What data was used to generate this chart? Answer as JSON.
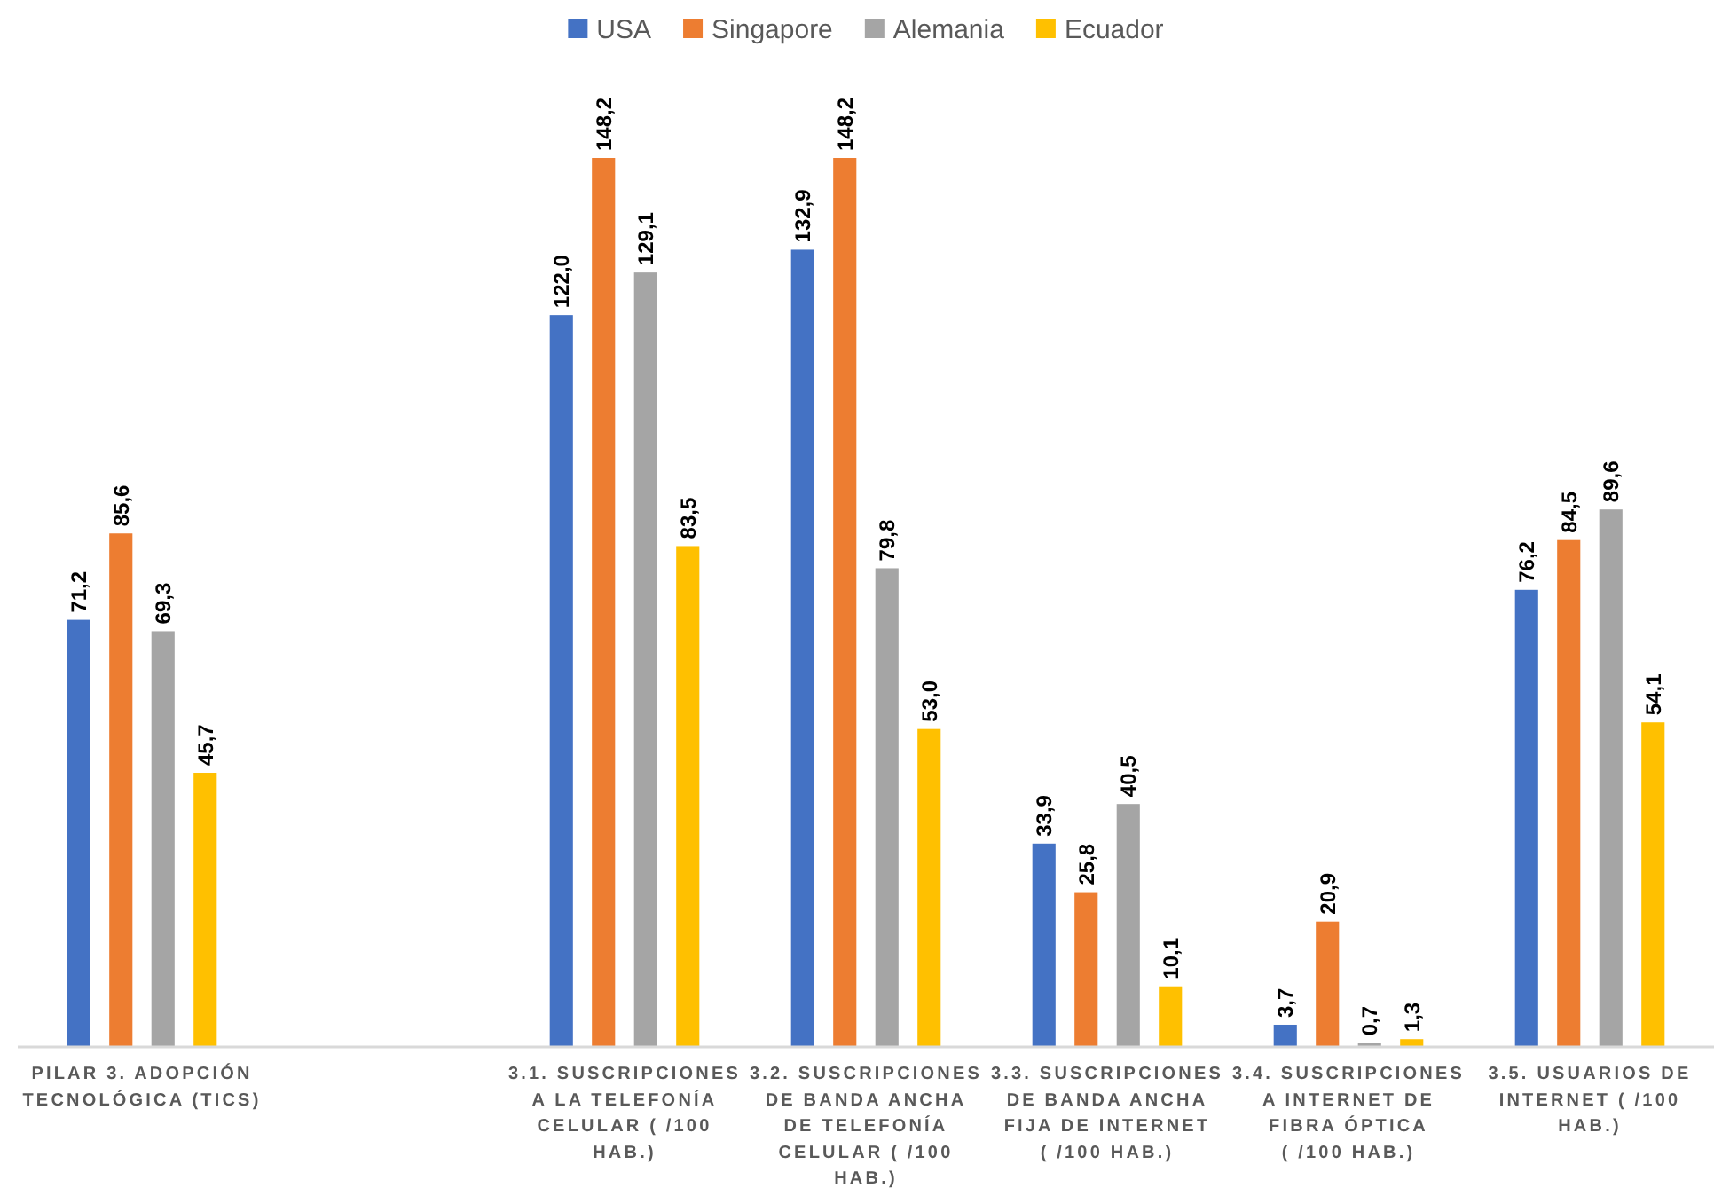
{
  "chart_data": {
    "type": "bar",
    "categories": [
      "PILAR 3. ADOPCIÓN\nTECNOLÓGICA (TICS)",
      null,
      "3.1. SUSCRIPCIONES\nA LA TELEFONÍA\nCELULAR ( /100\nHAB.)",
      "3.2. SUSCRIPCIONES\nDE BANDA ANCHA\nDE TELEFONÍA\nCELULAR ( /100\nHAB.)",
      "3.3. SUSCRIPCIONES\nDE BANDA ANCHA\nFIJA DE INTERNET\n( /100 HAB.)",
      "3.4. SUSCRIPCIONES\nA INTERNET DE\nFIBRA ÓPTICA\n( /100 HAB.)",
      "3.5. USUARIOS DE\nINTERNET ( /100\nHAB.)"
    ],
    "series": [
      {
        "name": "USA",
        "color": "#4472c4",
        "values": [
          71.2,
          null,
          122.0,
          132.9,
          33.9,
          3.7,
          76.2
        ],
        "value_labels": [
          "71,2",
          null,
          "122,0",
          "132,9",
          "33,9",
          "3,7",
          "76,2"
        ]
      },
      {
        "name": "Singapore",
        "color": "#ed7d31",
        "values": [
          85.6,
          null,
          148.2,
          148.2,
          25.8,
          20.9,
          84.5
        ],
        "value_labels": [
          "85,6",
          null,
          "148,2",
          "148,2",
          "25,8",
          "20,9",
          "84,5"
        ]
      },
      {
        "name": "Alemania",
        "color": "#a5a5a5",
        "values": [
          69.3,
          null,
          129.1,
          79.8,
          40.5,
          0.7,
          89.6
        ],
        "value_labels": [
          "69,3",
          null,
          "129,1",
          "79,8",
          "40,5",
          "0,7",
          "89,6"
        ]
      },
      {
        "name": "Ecuador",
        "color": "#ffc000",
        "values": [
          45.7,
          null,
          83.5,
          53.0,
          10.1,
          1.3,
          54.1
        ],
        "value_labels": [
          "45,7",
          null,
          "83,5",
          "53,0",
          "10,1",
          "1,3",
          "54,1"
        ]
      }
    ],
    "legend": "top"
  }
}
